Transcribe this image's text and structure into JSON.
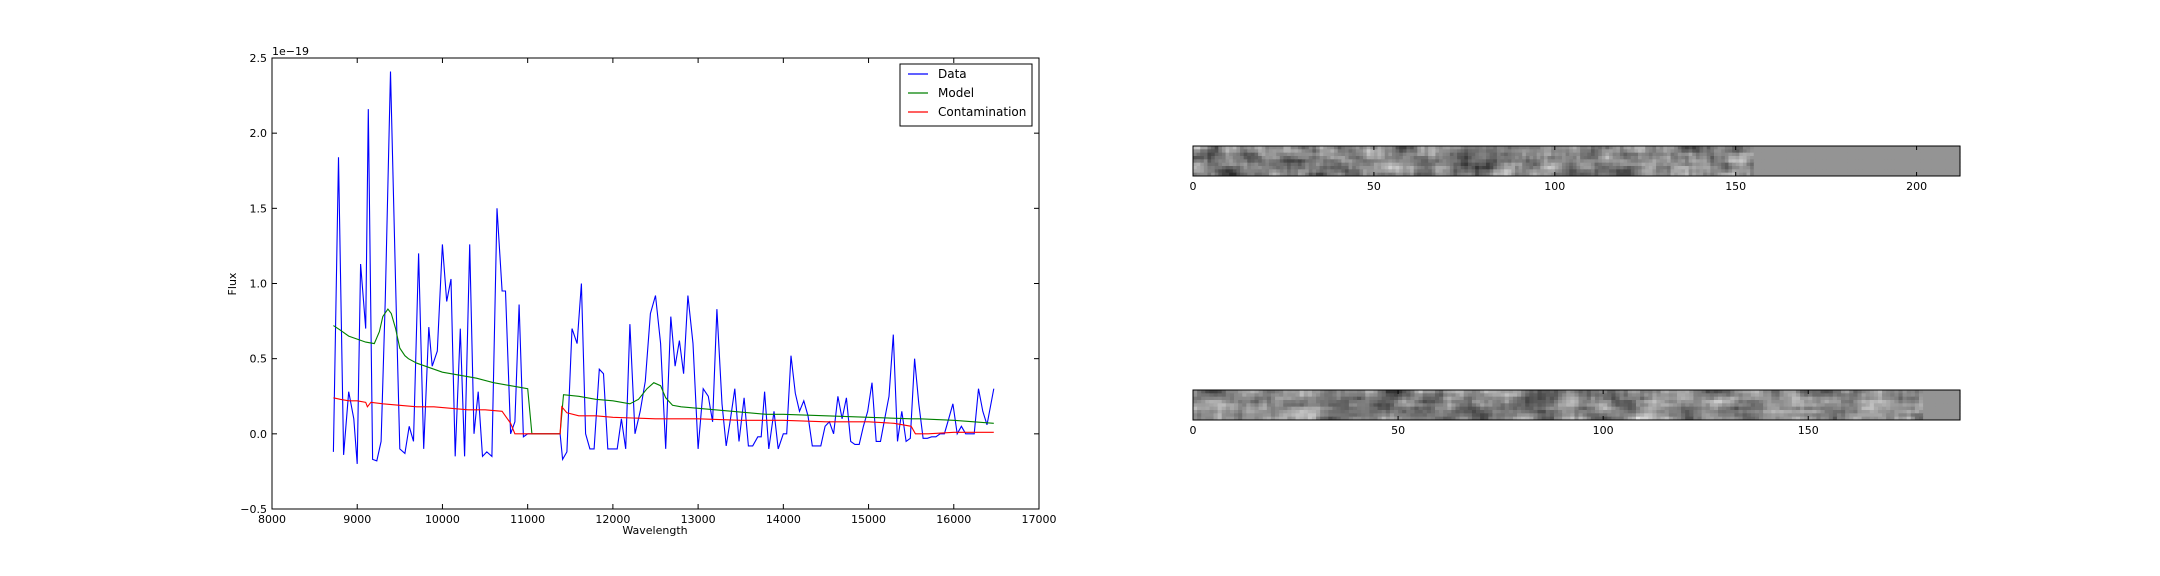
{
  "chart_data": [
    {
      "type": "line",
      "title": "",
      "xlabel": "Wavelength",
      "ylabel": "Flux",
      "offset_text": "1e−19",
      "xlim": [
        8000,
        17000
      ],
      "ylim": [
        -0.5,
        2.5
      ],
      "y_scale_factor": 1e-19,
      "xticks": [
        8000,
        9000,
        10000,
        11000,
        12000,
        13000,
        14000,
        15000,
        16000,
        17000
      ],
      "xtick_labels": [
        "8000",
        "9000",
        "10000",
        "11000",
        "12000",
        "13000",
        "14000",
        "15000",
        "16000",
        "17000"
      ],
      "yticks": [
        -0.5,
        0.0,
        0.5,
        1.0,
        1.5,
        2.0,
        2.5
      ],
      "ytick_labels": [
        "−0.5",
        "0.0",
        "0.5",
        "1.0",
        "1.5",
        "2.0",
        "2.5"
      ],
      "grid": false,
      "legend_position": "top-right",
      "series": [
        {
          "name": "Data",
          "color": "#0000ff",
          "points": [
            [
              8720,
              -0.12
            ],
            [
              8780,
              1.84
            ],
            [
              8840,
              -0.14
            ],
            [
              8900,
              0.28
            ],
            [
              8960,
              0.1
            ],
            [
              9000,
              -0.2
            ],
            [
              9040,
              1.13
            ],
            [
              9100,
              0.7
            ],
            [
              9130,
              2.16
            ],
            [
              9180,
              -0.17
            ],
            [
              9230,
              -0.18
            ],
            [
              9280,
              -0.05
            ],
            [
              9330,
              0.9
            ],
            [
              9390,
              2.41
            ],
            [
              9450,
              1.0
            ],
            [
              9500,
              -0.1
            ],
            [
              9560,
              -0.13
            ],
            [
              9610,
              0.05
            ],
            [
              9660,
              -0.05
            ],
            [
              9720,
              1.2
            ],
            [
              9780,
              -0.1
            ],
            [
              9840,
              0.71
            ],
            [
              9880,
              0.45
            ],
            [
              9940,
              0.55
            ],
            [
              10000,
              1.26
            ],
            [
              10050,
              0.88
            ],
            [
              10100,
              1.03
            ],
            [
              10150,
              -0.15
            ],
            [
              10210,
              0.7
            ],
            [
              10260,
              -0.15
            ],
            [
              10320,
              1.26
            ],
            [
              10370,
              0.0
            ],
            [
              10420,
              0.28
            ],
            [
              10470,
              -0.15
            ],
            [
              10520,
              -0.12
            ],
            [
              10580,
              -0.15
            ],
            [
              10640,
              1.5
            ],
            [
              10700,
              0.95
            ],
            [
              10740,
              0.95
            ],
            [
              10800,
              0.0
            ],
            [
              10850,
              0.08
            ],
            [
              10900,
              0.86
            ],
            [
              10950,
              -0.02
            ],
            [
              11000,
              0.0
            ],
            [
              11060,
              0.0
            ],
            [
              11380,
              0.0
            ],
            [
              11410,
              -0.17
            ],
            [
              11460,
              -0.12
            ],
            [
              11520,
              0.7
            ],
            [
              11580,
              0.6
            ],
            [
              11630,
              1.0
            ],
            [
              11680,
              0.0
            ],
            [
              11730,
              -0.1
            ],
            [
              11780,
              -0.1
            ],
            [
              11840,
              0.43
            ],
            [
              11890,
              0.4
            ],
            [
              11940,
              -0.1
            ],
            [
              12000,
              -0.1
            ],
            [
              12050,
              -0.1
            ],
            [
              12100,
              0.1
            ],
            [
              12150,
              -0.1
            ],
            [
              12200,
              0.73
            ],
            [
              12260,
              0.0
            ],
            [
              12320,
              0.15
            ],
            [
              12380,
              0.35
            ],
            [
              12440,
              0.8
            ],
            [
              12500,
              0.92
            ],
            [
              12560,
              0.6
            ],
            [
              12620,
              -0.1
            ],
            [
              12680,
              0.78
            ],
            [
              12730,
              0.45
            ],
            [
              12780,
              0.62
            ],
            [
              12830,
              0.4
            ],
            [
              12880,
              0.92
            ],
            [
              12940,
              0.6
            ],
            [
              13000,
              -0.1
            ],
            [
              13060,
              0.3
            ],
            [
              13120,
              0.25
            ],
            [
              13170,
              0.08
            ],
            [
              13220,
              0.83
            ],
            [
              13280,
              0.2
            ],
            [
              13330,
              -0.08
            ],
            [
              13380,
              0.1
            ],
            [
              13430,
              0.3
            ],
            [
              13480,
              -0.05
            ],
            [
              13540,
              0.24
            ],
            [
              13590,
              -0.08
            ],
            [
              13640,
              -0.08
            ],
            [
              13700,
              -0.02
            ],
            [
              13740,
              -0.02
            ],
            [
              13780,
              0.28
            ],
            [
              13830,
              -0.1
            ],
            [
              13890,
              0.15
            ],
            [
              13940,
              -0.1
            ],
            [
              14000,
              0.0
            ],
            [
              14040,
              0.0
            ],
            [
              14090,
              0.52
            ],
            [
              14140,
              0.27
            ],
            [
              14190,
              0.15
            ],
            [
              14240,
              0.22
            ],
            [
              14290,
              0.12
            ],
            [
              14340,
              -0.08
            ],
            [
              14390,
              -0.08
            ],
            [
              14440,
              -0.08
            ],
            [
              14490,
              0.05
            ],
            [
              14540,
              0.08
            ],
            [
              14590,
              0.0
            ],
            [
              14640,
              0.25
            ],
            [
              14690,
              0.1
            ],
            [
              14740,
              0.24
            ],
            [
              14790,
              -0.05
            ],
            [
              14840,
              -0.07
            ],
            [
              14890,
              -0.07
            ],
            [
              14940,
              0.05
            ],
            [
              14990,
              0.15
            ],
            [
              15040,
              0.34
            ],
            [
              15090,
              -0.05
            ],
            [
              15140,
              -0.05
            ],
            [
              15190,
              0.1
            ],
            [
              15240,
              0.25
            ],
            [
              15290,
              0.66
            ],
            [
              15340,
              -0.05
            ],
            [
              15390,
              0.15
            ],
            [
              15440,
              -0.05
            ],
            [
              15490,
              -0.03
            ],
            [
              15540,
              0.5
            ],
            [
              15590,
              0.2
            ],
            [
              15640,
              -0.03
            ],
            [
              15690,
              -0.03
            ],
            [
              15740,
              -0.02
            ],
            [
              15790,
              -0.02
            ],
            [
              15840,
              0.0
            ],
            [
              15890,
              0.0
            ],
            [
              15940,
              0.1
            ],
            [
              15990,
              0.2
            ],
            [
              16040,
              0.0
            ],
            [
              16090,
              0.05
            ],
            [
              16140,
              0.0
            ],
            [
              16190,
              0.0
            ],
            [
              16240,
              0.0
            ],
            [
              16290,
              0.3
            ],
            [
              16340,
              0.15
            ],
            [
              16390,
              0.06
            ],
            [
              16470,
              0.3
            ]
          ]
        },
        {
          "name": "Model",
          "color": "#008000",
          "points": [
            [
              8720,
              0.72
            ],
            [
              8800,
              0.69
            ],
            [
              8900,
              0.65
            ],
            [
              9000,
              0.63
            ],
            [
              9100,
              0.61
            ],
            [
              9200,
              0.6
            ],
            [
              9260,
              0.68
            ],
            [
              9300,
              0.78
            ],
            [
              9360,
              0.83
            ],
            [
              9400,
              0.8
            ],
            [
              9450,
              0.7
            ],
            [
              9500,
              0.57
            ],
            [
              9560,
              0.52
            ],
            [
              9600,
              0.5
            ],
            [
              9700,
              0.47
            ],
            [
              9800,
              0.45
            ],
            [
              9900,
              0.43
            ],
            [
              10000,
              0.41
            ],
            [
              10200,
              0.39
            ],
            [
              10400,
              0.37
            ],
            [
              10600,
              0.34
            ],
            [
              10800,
              0.32
            ],
            [
              10900,
              0.31
            ],
            [
              11000,
              0.3
            ],
            [
              11050,
              0.0
            ],
            [
              11380,
              0.0
            ],
            [
              11420,
              0.26
            ],
            [
              11600,
              0.25
            ],
            [
              11800,
              0.23
            ],
            [
              12000,
              0.22
            ],
            [
              12200,
              0.2
            ],
            [
              12300,
              0.23
            ],
            [
              12400,
              0.3
            ],
            [
              12480,
              0.34
            ],
            [
              12560,
              0.32
            ],
            [
              12620,
              0.24
            ],
            [
              12700,
              0.19
            ],
            [
              12800,
              0.18
            ],
            [
              13000,
              0.17
            ],
            [
              13200,
              0.16
            ],
            [
              13400,
              0.15
            ],
            [
              13600,
              0.14
            ],
            [
              13800,
              0.13
            ],
            [
              14000,
              0.13
            ],
            [
              14500,
              0.12
            ],
            [
              15000,
              0.11
            ],
            [
              15500,
              0.1
            ],
            [
              15600,
              0.1
            ],
            [
              16000,
              0.09
            ],
            [
              16470,
              0.07
            ]
          ]
        },
        {
          "name": "Contamination",
          "color": "#ff0000",
          "points": [
            [
              8720,
              0.24
            ],
            [
              8800,
              0.23
            ],
            [
              8900,
              0.22
            ],
            [
              9000,
              0.22
            ],
            [
              9100,
              0.21
            ],
            [
              9120,
              0.18
            ],
            [
              9160,
              0.21
            ],
            [
              9300,
              0.2
            ],
            [
              9500,
              0.19
            ],
            [
              9700,
              0.18
            ],
            [
              9900,
              0.18
            ],
            [
              10100,
              0.17
            ],
            [
              10300,
              0.16
            ],
            [
              10500,
              0.16
            ],
            [
              10700,
              0.15
            ],
            [
              10800,
              0.07
            ],
            [
              10850,
              0.0
            ],
            [
              11050,
              0.0
            ],
            [
              11380,
              0.0
            ],
            [
              11400,
              0.18
            ],
            [
              11460,
              0.14
            ],
            [
              11600,
              0.12
            ],
            [
              11800,
              0.12
            ],
            [
              12000,
              0.11
            ],
            [
              12500,
              0.1
            ],
            [
              13000,
              0.1
            ],
            [
              13500,
              0.09
            ],
            [
              14000,
              0.09
            ],
            [
              14500,
              0.08
            ],
            [
              15000,
              0.08
            ],
            [
              15300,
              0.07
            ],
            [
              15500,
              0.05
            ],
            [
              15550,
              0.0
            ],
            [
              15700,
              0.0
            ],
            [
              16000,
              0.01
            ],
            [
              16470,
              0.01
            ]
          ]
        }
      ]
    },
    {
      "type": "heatmap",
      "colormap": "gray",
      "xlim": [
        0,
        212
      ],
      "xticks": [
        0,
        50,
        100,
        150,
        200
      ],
      "xtick_labels": [
        "0",
        "50",
        "100",
        "150",
        "200"
      ],
      "image_rows": 9,
      "image_cols": 212,
      "flat_region_start_col": 155,
      "seed": 7
    },
    {
      "type": "heatmap",
      "colormap": "gray",
      "xlim": [
        0,
        187
      ],
      "xticks": [
        0,
        50,
        100,
        150
      ],
      "xtick_labels": [
        "0",
        "50",
        "100",
        "150"
      ],
      "image_rows": 9,
      "image_cols": 187,
      "flat_region_start_col": 178,
      "seed": 13
    }
  ]
}
